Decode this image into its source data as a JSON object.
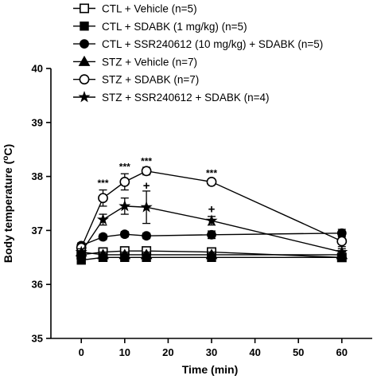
{
  "chart_data": {
    "type": "line",
    "xlabel": "Time (min)",
    "ylabel": "Body temperature (°C)",
    "ylabel_parts": {
      "main": "Body temperature (",
      "sup": "o",
      "end": "C)"
    },
    "xlim": [
      -7,
      67
    ],
    "ylim": [
      35,
      40
    ],
    "xticks": [
      0,
      10,
      20,
      30,
      40,
      50,
      60
    ],
    "yticks": [
      35,
      36,
      37,
      38,
      39,
      40
    ],
    "x": [
      0,
      5,
      10,
      15,
      30,
      60
    ],
    "grid": false,
    "legend_position": "top",
    "series": [
      {
        "name": "CTL + Vehicle (n=5)",
        "marker": "square-open",
        "values": [
          36.55,
          36.6,
          36.62,
          36.62,
          36.6,
          36.5
        ],
        "errors": [
          0.06,
          0.06,
          0.07,
          0.07,
          0.05,
          0.05
        ]
      },
      {
        "name": "CTL + SDABK (1 mg/kg) (n=5)",
        "marker": "square-filled",
        "values": [
          36.45,
          36.5,
          36.5,
          36.5,
          36.5,
          36.5
        ],
        "errors": [
          0.05,
          0.05,
          0.05,
          0.05,
          0.05,
          0.05
        ]
      },
      {
        "name": "CTL + SSR240612 (10 mg/kg) + SDABK (n=5)",
        "marker": "circle-filled",
        "values": [
          36.72,
          36.88,
          36.93,
          36.9,
          36.92,
          36.95
        ],
        "errors": [
          0.05,
          0.05,
          0.05,
          0.05,
          0.07,
          0.07
        ]
      },
      {
        "name": "STZ + Vehicle (n=7)",
        "marker": "triangle-filled",
        "values": [
          36.6,
          36.55,
          36.55,
          36.55,
          36.55,
          36.55
        ],
        "errors": [
          0.05,
          0.05,
          0.05,
          0.05,
          0.05,
          0.05
        ]
      },
      {
        "name": "STZ + SDABK (n=7)",
        "marker": "circle-open",
        "values": [
          36.68,
          37.6,
          37.9,
          38.1,
          37.9,
          36.8
        ],
        "errors": [
          0.08,
          0.15,
          0.15,
          0.07,
          0.05,
          0.1
        ]
      },
      {
        "name": "STZ + SSR240612 + SDABK (n=4)",
        "marker": "star",
        "values": [
          36.6,
          37.2,
          37.45,
          37.43,
          37.18,
          36.6
        ],
        "errors": [
          0.06,
          0.1,
          0.15,
          0.3,
          0.08,
          0.06
        ]
      }
    ],
    "annotations": [
      {
        "text": "***",
        "x": 5,
        "y": 37.82
      },
      {
        "text": "***",
        "x": 10,
        "y": 38.12
      },
      {
        "text": "***",
        "x": 15,
        "y": 38.22
      },
      {
        "text": "***",
        "x": 30,
        "y": 38.0
      },
      {
        "text": "+",
        "x": 15,
        "y": 37.76
      },
      {
        "text": "+",
        "x": 30,
        "y": 37.32
      }
    ]
  }
}
